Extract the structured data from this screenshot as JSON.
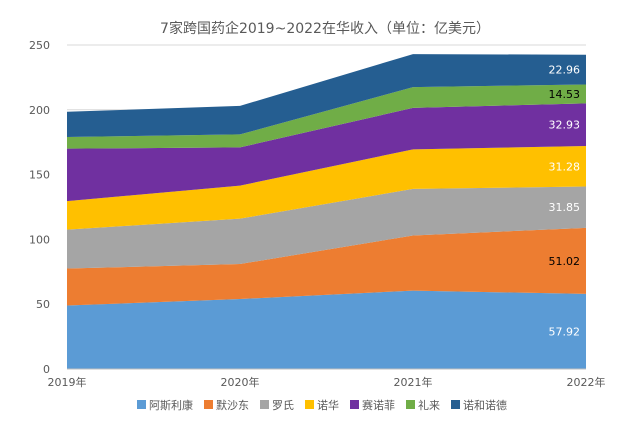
{
  "chart_data": {
    "type": "area",
    "stacked": true,
    "title": "7家跨国药企2019~2022在华收入（单位：亿美元）",
    "categories": [
      "2019年",
      "2020年",
      "2021年",
      "2022年"
    ],
    "ylim": [
      0,
      250
    ],
    "yticks": [
      0,
      50,
      100,
      150,
      200,
      250
    ],
    "grid": true,
    "legend_position": "bottom",
    "series": [
      {
        "name": "阿斯利康",
        "color": "#5b9bd5",
        "values": [
          49,
          54,
          60.5,
          57.92
        ],
        "labels": [
          "",
          "",
          "",
          "57.92"
        ],
        "label_color": "#ffffff"
      },
      {
        "name": "默沙东",
        "color": "#ed7d31",
        "values": [
          28.5,
          27,
          42.5,
          51.02
        ],
        "labels": [
          "",
          "",
          "",
          "51.02"
        ],
        "label_color": "#000000"
      },
      {
        "name": "罗氏",
        "color": "#a5a5a5",
        "values": [
          30,
          35,
          36,
          31.85
        ],
        "labels": [
          "",
          "",
          "",
          "31.85"
        ],
        "label_color": "#ffffff"
      },
      {
        "name": "诺华",
        "color": "#ffc000",
        "values": [
          22,
          25.5,
          30.5,
          31.28
        ],
        "labels": [
          "",
          "",
          "",
          "31.28"
        ],
        "label_color": "#ffffff"
      },
      {
        "name": "赛诺菲",
        "color": "#7030a0",
        "values": [
          40.5,
          29.5,
          32,
          32.93
        ],
        "labels": [
          "",
          "",
          "",
          "32.93"
        ],
        "label_color": "#ffffff"
      },
      {
        "name": "礼来",
        "color": "#70ad47",
        "values": [
          9,
          10,
          16,
          14.53
        ],
        "labels": [
          "",
          "",
          "",
          "14.53"
        ],
        "label_color": "#000000"
      },
      {
        "name": "诺和诺德",
        "color": "#255e91",
        "values": [
          19.5,
          22,
          25.5,
          22.96
        ],
        "labels": [
          "",
          "",
          "",
          "22.96"
        ],
        "label_color": "#ffffff"
      }
    ]
  }
}
